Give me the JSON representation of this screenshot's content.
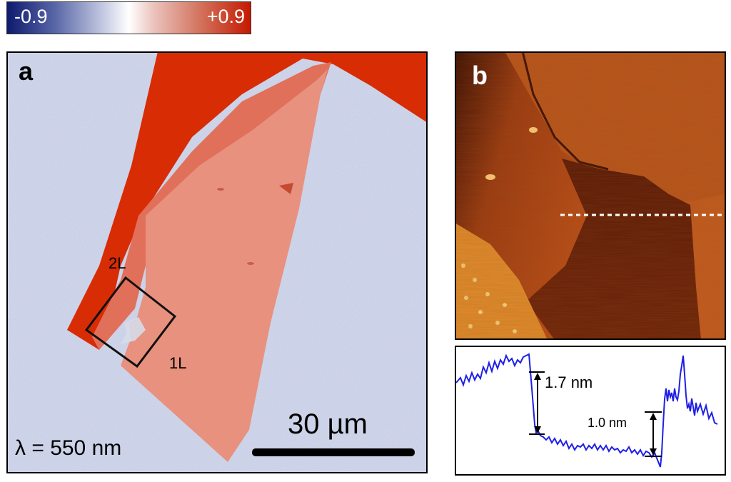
{
  "colorbar": {
    "min_label": "-0.9",
    "max_label": "+0.9",
    "colors": [
      "#0e1a6e",
      "#ffffff",
      "#c41a00"
    ]
  },
  "panel_a": {
    "letter": "a",
    "region_label_2L": "2L",
    "region_label_1L": "1L",
    "scale_bar_label": "30 µm",
    "wavelength_label": "λ = 550 nm",
    "colors": {
      "background": "#d4d9e8",
      "thick": "#d82c05",
      "monolayer": "#e68c7c"
    }
  },
  "panel_b": {
    "letter": "b",
    "colors": {
      "substrate": "#b54a14",
      "dark_step": "#6a1e08",
      "profile_line": "#1f1fe6"
    }
  },
  "profile": {
    "step1_label": "1.7 nm",
    "step2_label": "1.0 nm"
  }
}
